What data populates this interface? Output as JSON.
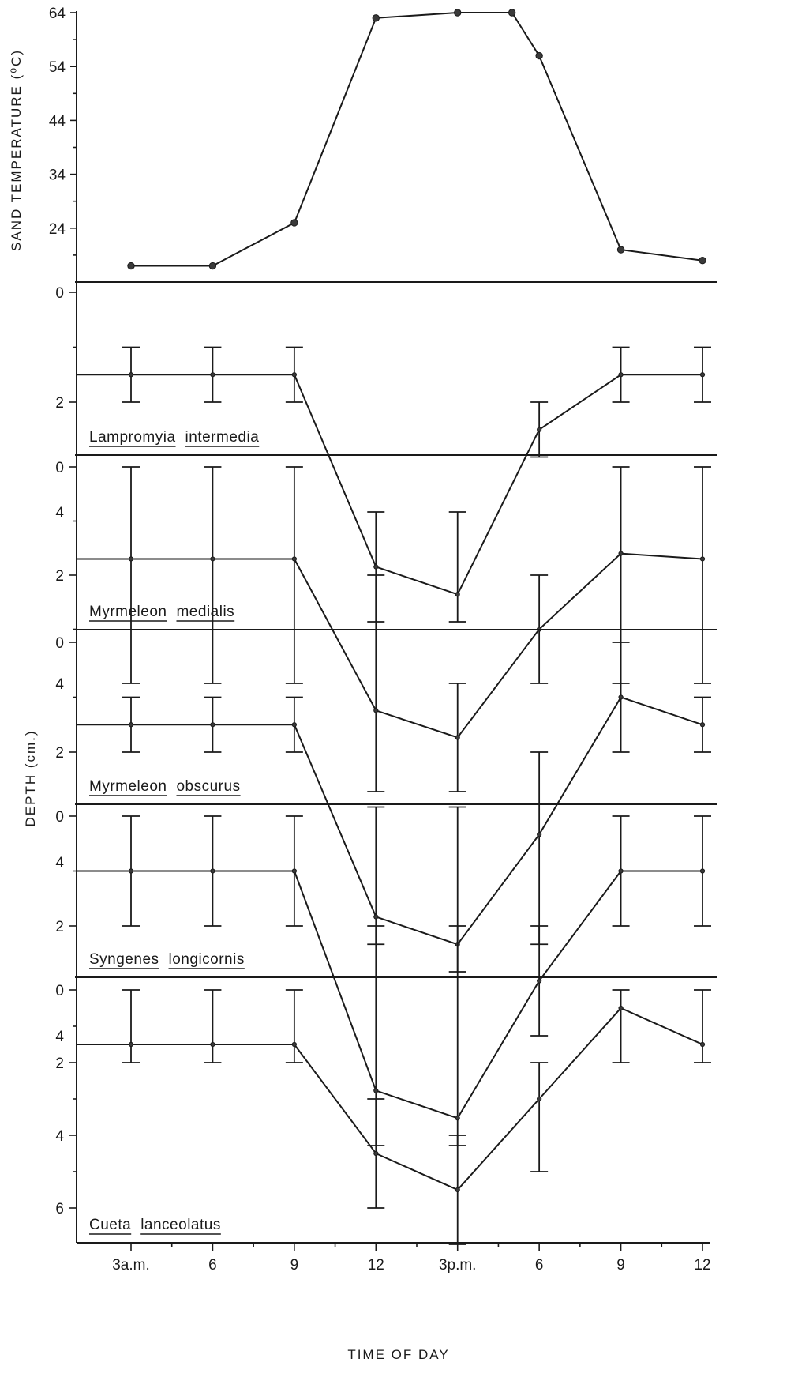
{
  "chart_data": [
    {
      "type": "line",
      "title": "",
      "xlabel": "",
      "ylabel": "SAND TEMPERATURE (⁰C)",
      "categories": [
        "3a.m.",
        "6",
        "9",
        "12",
        "3p.m.",
        "6",
        "9",
        "12"
      ],
      "y_ticks": [
        24,
        34,
        44,
        54,
        64
      ],
      "ylim": [
        14,
        64
      ],
      "series": [
        {
          "x": [
            3,
            6,
            9,
            12,
            15,
            17,
            18,
            21,
            24
          ],
          "values": [
            17,
            17,
            25,
            63,
            64,
            64,
            56,
            20,
            18
          ]
        }
      ]
    },
    {
      "type": "line",
      "name_label": [
        "Lampromyia",
        "intermedia"
      ],
      "ylim": [
        0,
        6
      ],
      "y_ticks": [
        0,
        2,
        4
      ],
      "series": [
        {
          "x": [
            3,
            6,
            9,
            12,
            15,
            18,
            21,
            24
          ],
          "values": [
            1.5,
            1.5,
            1.5,
            5.0,
            5.5,
            2.5,
            1.5,
            1.5
          ],
          "err_low": [
            1,
            1,
            1,
            4,
            4,
            2,
            1,
            1
          ],
          "err_high": [
            2,
            2,
            2,
            6,
            6,
            3,
            2,
            2
          ]
        }
      ]
    },
    {
      "type": "line",
      "name_label": [
        "Myrmeleon",
        "medialis"
      ],
      "ylim": [
        0,
        6
      ],
      "y_ticks": [
        0,
        2,
        4
      ],
      "series": [
        {
          "x": [
            3,
            6,
            9,
            12,
            15,
            18,
            21,
            24
          ],
          "values": [
            1.7,
            1.7,
            1.7,
            4.5,
            5.0,
            3.0,
            1.6,
            1.7
          ],
          "err_low": [
            0,
            0,
            0,
            2,
            4,
            2,
            0,
            0
          ],
          "err_high": [
            4,
            4,
            4,
            6,
            6,
            4,
            4,
            4
          ]
        }
      ]
    },
    {
      "type": "line",
      "name_label": [
        "Myrmeleon",
        "obscurus"
      ],
      "ylim": [
        0,
        6
      ],
      "y_ticks": [
        0,
        2,
        4
      ],
      "series": [
        {
          "x": [
            3,
            6,
            9,
            12,
            15,
            18,
            21,
            24
          ],
          "values": [
            1.5,
            1.5,
            1.5,
            5.0,
            5.5,
            3.5,
            1.0,
            1.5
          ],
          "err_low": [
            1,
            1,
            1,
            3,
            3,
            2,
            0,
            1
          ],
          "err_high": [
            2,
            2,
            2,
            5.5,
            6,
            5.5,
            2,
            2
          ]
        }
      ]
    },
    {
      "type": "line",
      "name_label": [
        "Syngenes",
        "longicornis"
      ],
      "ylim": [
        0,
        6
      ],
      "y_ticks": [
        0,
        2,
        4
      ],
      "series": [
        {
          "x": [
            3,
            6,
            9,
            12,
            15,
            18,
            21,
            24
          ],
          "values": [
            1.0,
            1.0,
            1.0,
            5.0,
            5.5,
            3.0,
            1.0,
            1.0
          ],
          "err_low": [
            0,
            0,
            0,
            2,
            2,
            2,
            0,
            0
          ],
          "err_high": [
            2,
            2,
            2,
            6,
            6,
            4,
            2,
            2
          ]
        }
      ]
    },
    {
      "type": "line",
      "name_label": [
        "Cueta",
        "lanceolatus"
      ],
      "ylim": [
        0,
        7
      ],
      "y_ticks": [
        0,
        2,
        4,
        6
      ],
      "series": [
        {
          "x": [
            3,
            6,
            9,
            12,
            15,
            18,
            21,
            24
          ],
          "values": [
            1.5,
            1.5,
            1.5,
            4.5,
            5.5,
            3.0,
            0.5,
            1.5
          ],
          "err_low": [
            0,
            0,
            0,
            3,
            4,
            2,
            0,
            0
          ],
          "err_high": [
            2,
            2,
            2,
            6,
            7,
            5,
            2,
            2
          ]
        }
      ]
    }
  ],
  "shared_axes": {
    "depth_ylabel": "DEPTH (cm.)",
    "xlabel": "TIME OF DAY",
    "x_categories": [
      "3a.m.",
      "6",
      "9",
      "12",
      "3p.m.",
      "6",
      "9",
      "12"
    ],
    "x_category_values": [
      3,
      6,
      9,
      12,
      15,
      18,
      21,
      24
    ]
  }
}
